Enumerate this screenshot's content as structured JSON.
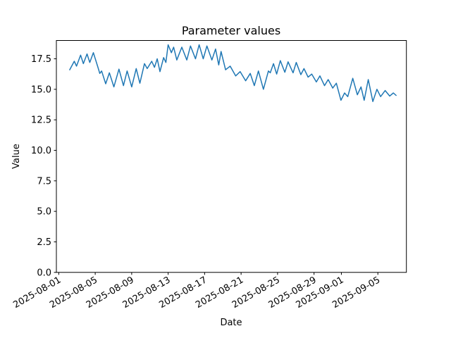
{
  "figure": {
    "background": "#ffffff",
    "frame_color": "#000000"
  },
  "chart_data": {
    "type": "line",
    "title": "Parameter values",
    "xlabel": "Date",
    "ylabel": "Value",
    "grid": false,
    "legend": "none",
    "line_color": "#1f77b4",
    "line_width": 1.5,
    "ylim": [
      0,
      19.0
    ],
    "xlim_days": [
      -0.26,
      38.13
    ],
    "y_ticks": {
      "values": [
        0.0,
        2.5,
        5.0,
        7.5,
        10.0,
        12.5,
        15.0,
        17.5
      ],
      "labels": [
        "0.0",
        "2.5",
        "5.0",
        "7.5",
        "10.0",
        "12.5",
        "15.0",
        "17.5"
      ]
    },
    "x_ticks": {
      "days": [
        0,
        4,
        8,
        12,
        16,
        20,
        24,
        28,
        31,
        35
      ],
      "labels": [
        "2025-08-01",
        "2025-08-05",
        "2025-08-09",
        "2025-08-13",
        "2025-08-17",
        "2025-08-21",
        "2025-08-25",
        "2025-08-29",
        "2025-09-01",
        "2025-09-05"
      ],
      "rotation_deg": 30
    },
    "series": [
      {
        "name": "parameter-values",
        "color": "#1f77b4",
        "x_days_since_2025_08_01": [
          1.2,
          1.7,
          1.95,
          2.4,
          2.7,
          3.1,
          3.4,
          3.8,
          4.3,
          4.5,
          4.7,
          5.15,
          5.55,
          6.05,
          6.6,
          7.1,
          7.5,
          8.0,
          8.5,
          8.9,
          9.4,
          9.7,
          10.2,
          10.5,
          10.8,
          11.1,
          11.5,
          11.75,
          12.0,
          12.35,
          12.6,
          12.95,
          13.5,
          14.05,
          14.45,
          15.0,
          15.4,
          15.85,
          16.25,
          16.8,
          17.2,
          17.55,
          17.8,
          18.3,
          18.8,
          19.4,
          19.9,
          20.5,
          21.0,
          21.45,
          21.9,
          22.45,
          23.0,
          23.2,
          23.55,
          23.9,
          24.3,
          24.8,
          25.15,
          25.7,
          26.05,
          26.55,
          26.9,
          27.35,
          27.75,
          28.25,
          28.65,
          29.15,
          29.55,
          30.05,
          30.45,
          30.95,
          31.35,
          31.7,
          32.25,
          32.75,
          33.15,
          33.5,
          33.95,
          34.45,
          34.9,
          35.3,
          35.8,
          36.3,
          36.7,
          37.0
        ],
        "values": [
          16.6,
          17.3,
          16.9,
          17.8,
          17.1,
          17.9,
          17.2,
          18.0,
          16.8,
          16.3,
          16.5,
          15.45,
          16.35,
          15.2,
          16.65,
          15.3,
          16.5,
          15.2,
          16.7,
          15.5,
          17.1,
          16.7,
          17.3,
          16.8,
          17.5,
          16.45,
          17.6,
          17.2,
          18.65,
          18.0,
          18.45,
          17.4,
          18.45,
          17.4,
          18.55,
          17.5,
          18.65,
          17.5,
          18.55,
          17.4,
          18.3,
          17.0,
          18.1,
          16.6,
          16.9,
          16.1,
          16.45,
          15.7,
          16.3,
          15.3,
          16.5,
          15.0,
          16.5,
          16.35,
          17.1,
          16.25,
          17.35,
          16.4,
          17.25,
          16.35,
          17.2,
          16.2,
          16.7,
          16.0,
          16.25,
          15.6,
          16.1,
          15.3,
          15.8,
          15.1,
          15.5,
          14.1,
          14.7,
          14.4,
          15.9,
          14.55,
          15.2,
          14.1,
          15.8,
          14.0,
          15.0,
          14.4,
          14.9,
          14.45,
          14.7,
          14.5
        ]
      }
    ]
  }
}
